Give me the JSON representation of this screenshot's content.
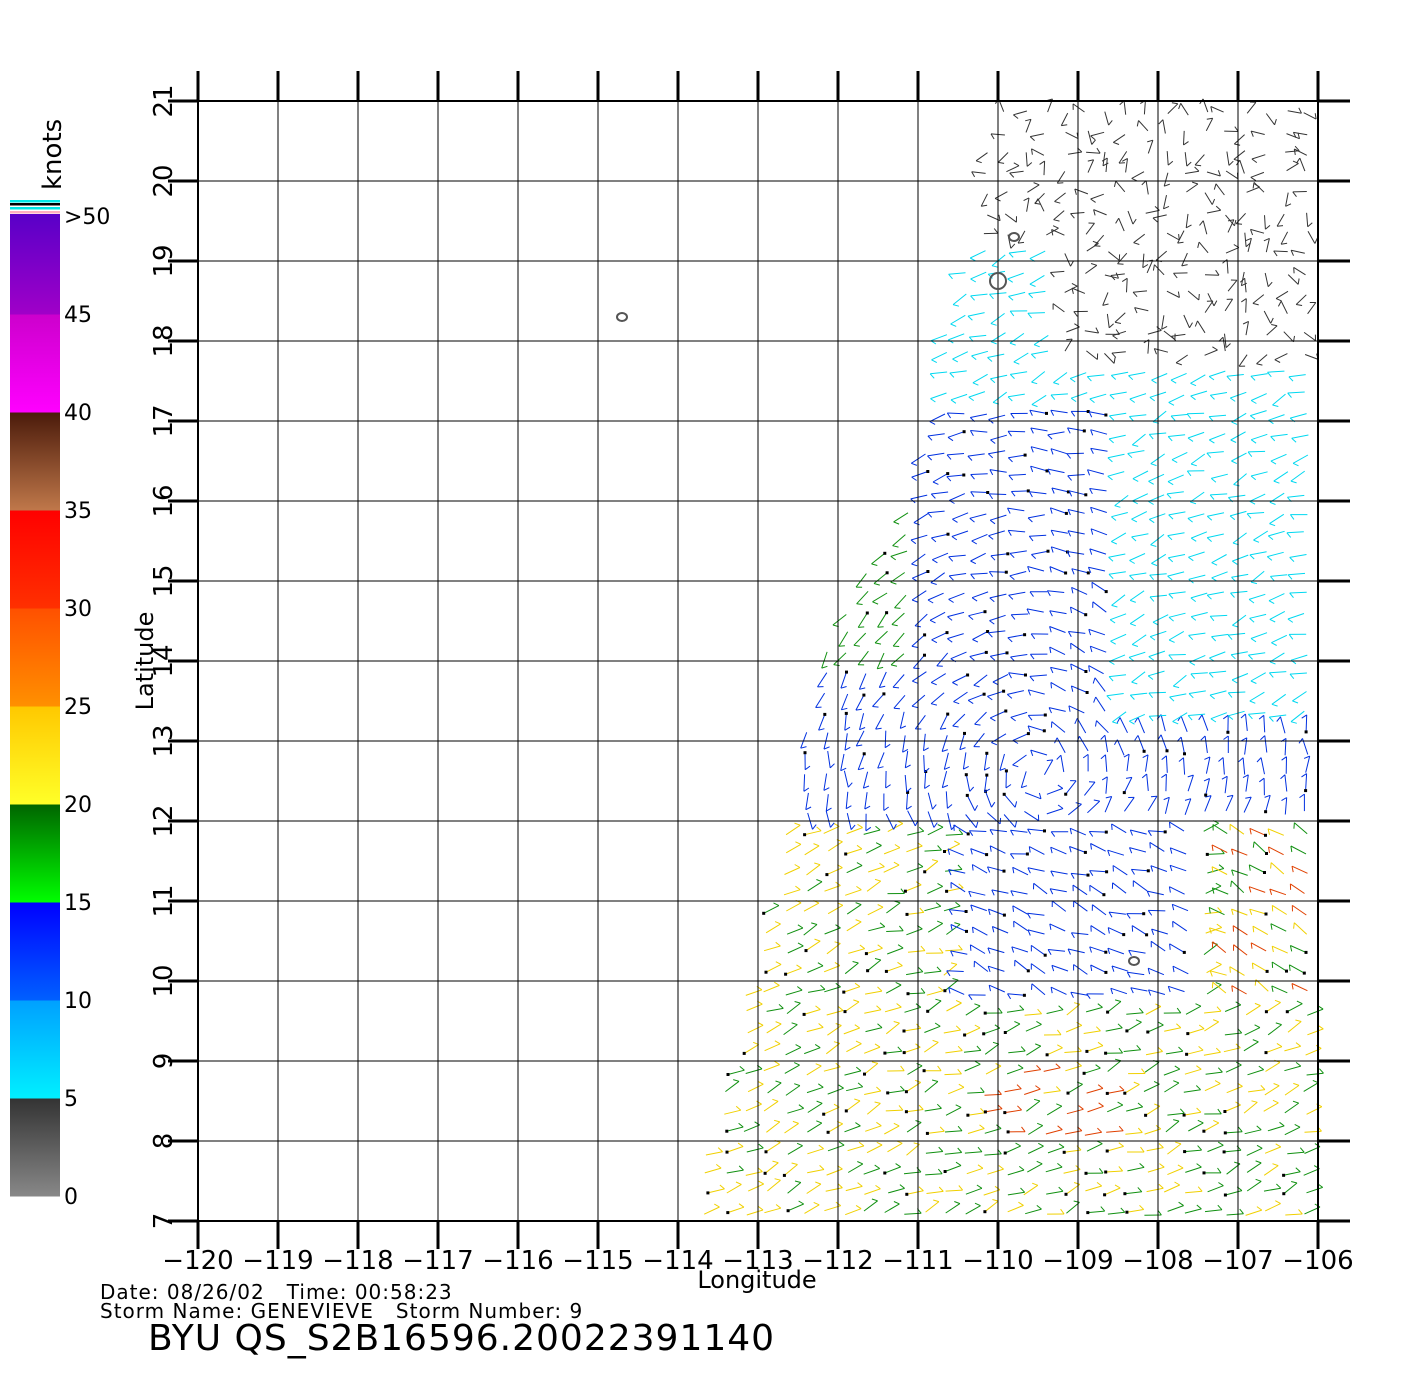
{
  "colorbar": {
    "unit": "knots",
    "segments": [
      {
        "from": 0,
        "to": 5,
        "top": "#333333",
        "bottom": "#888888"
      },
      {
        "from": 5,
        "to": 10,
        "top": "#00a0ff",
        "bottom": "#00f0ff"
      },
      {
        "from": 10,
        "to": 15,
        "top": "#0000ff",
        "bottom": "#0060ff"
      },
      {
        "from": 15,
        "to": 20,
        "top": "#006400",
        "bottom": "#00ff00"
      },
      {
        "from": 20,
        "to": 25,
        "top": "#ffc800",
        "bottom": "#ffff28"
      },
      {
        "from": 25,
        "to": 30,
        "top": "#ff5000",
        "bottom": "#ff9000"
      },
      {
        "from": 30,
        "to": 35,
        "top": "#ff0000",
        "bottom": "#ff3000"
      },
      {
        "from": 35,
        "to": 40,
        "top": "#4a1a0a",
        "bottom": "#c0784a"
      },
      {
        "from": 40,
        "to": 45,
        "top": "#cc00cc",
        "bottom": "#ff00ff"
      },
      {
        "from": 45,
        "to": 50,
        "top": "#5a00c8",
        "bottom": "#a000c8"
      }
    ],
    "tick_labels": [
      "0",
      "5",
      "10",
      "15",
      "20",
      "25",
      "30",
      "35",
      "40",
      "45",
      ">50"
    ]
  },
  "axes": {
    "xlabel": "Longitude",
    "ylabel": "Latitude",
    "lon_range": [
      -120,
      -106
    ],
    "lat_range": [
      7,
      21
    ],
    "lon_ticks": [
      "−120",
      "−119",
      "−118",
      "−117",
      "−116",
      "−115",
      "−114",
      "−113",
      "−112",
      "−111",
      "−110",
      "−109",
      "−108",
      "−107",
      "−106"
    ],
    "lat_ticks": [
      "7",
      "8",
      "9",
      "10",
      "11",
      "12",
      "13",
      "14",
      "15",
      "16",
      "17",
      "18",
      "19",
      "20",
      "21"
    ]
  },
  "islands": [
    {
      "lon": -114.7,
      "lat": 18.3
    },
    {
      "lon": -110.0,
      "lat": 18.75
    },
    {
      "lon": -109.8,
      "lat": 19.3
    },
    {
      "lon": -108.3,
      "lat": 10.25
    }
  ],
  "wind_colors": {
    "calm": "#333333",
    "light": "#00d8f0",
    "moderate": "#0030e0",
    "fresh": "#109010",
    "strong": "#f0d000",
    "gale": "#e04000"
  },
  "meta": {
    "date_line": "Date: 08/26/02   Time: 00:58:23",
    "storm_line": "Storm Name: GENEVIEVE   Storm Number: 9",
    "product": "BYU QS_S2B16596.20022391140"
  }
}
